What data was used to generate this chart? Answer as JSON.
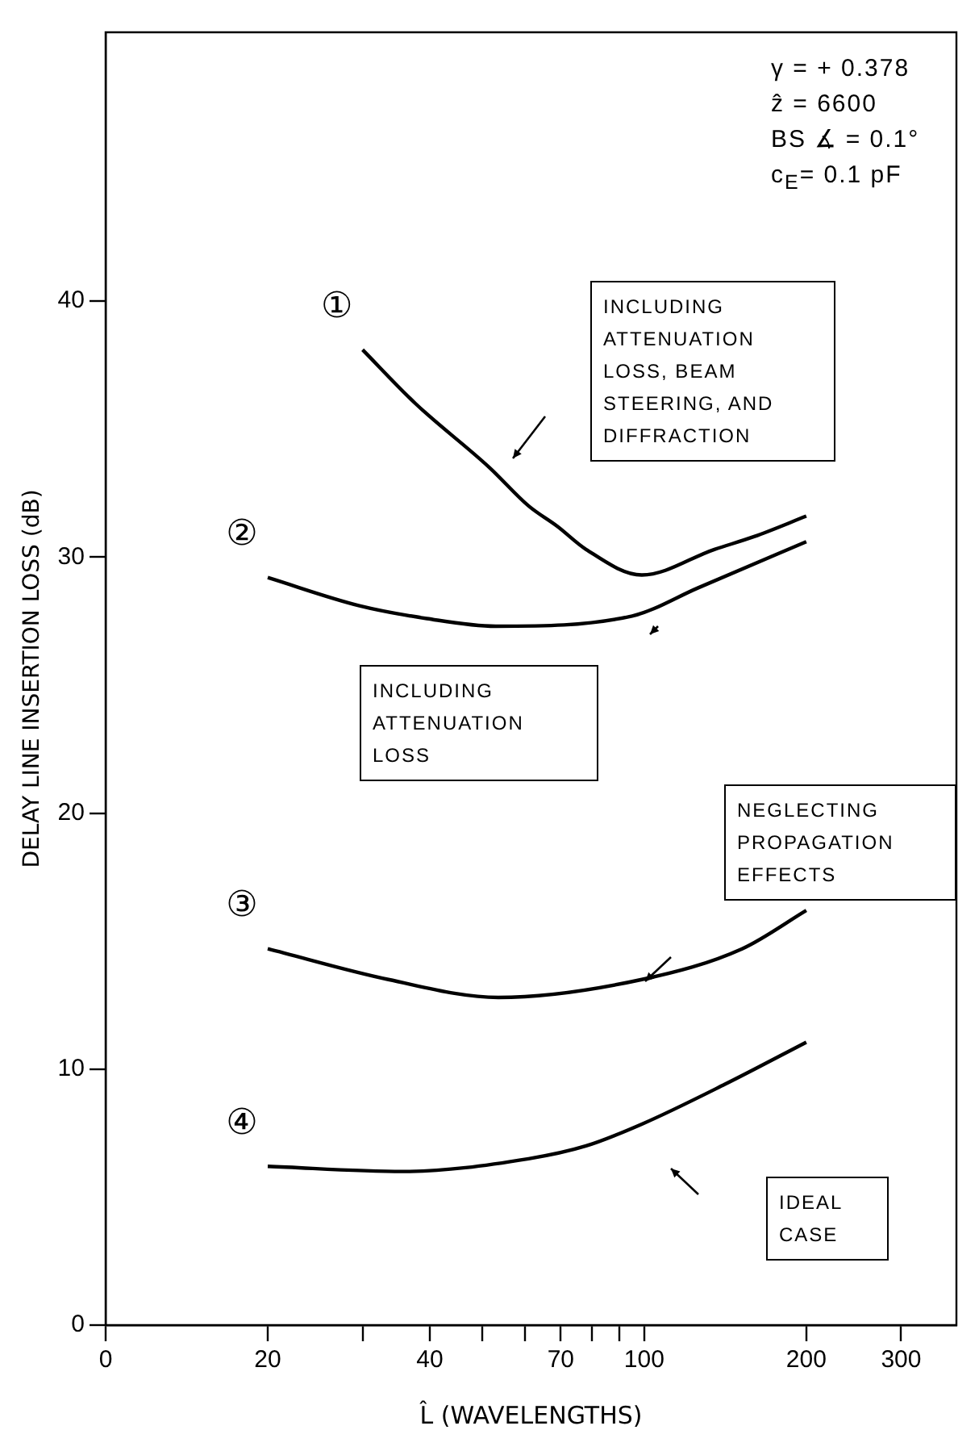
{
  "chart_data": {
    "type": "line",
    "xlabel": "L̂ (WAVELENGTHS)",
    "ylabel": "DELAY LINE INSERTION LOSS (dB)",
    "log": "x",
    "xlim": [
      0,
      380
    ],
    "ylim": [
      0,
      50.5
    ],
    "xticks": [
      0,
      20,
      {
        "value": 30,
        "label": null
      },
      40,
      {
        "value": 50,
        "label": null
      },
      {
        "value": 60,
        "label": null
      },
      70,
      {
        "value": 80,
        "label": null
      },
      {
        "value": 90,
        "label": null
      },
      100,
      200,
      300
    ],
    "yticks": [
      0,
      10,
      20,
      30,
      40
    ],
    "grid": false,
    "legend": false,
    "marker": "none",
    "line_style": "solid",
    "series": [
      {
        "name": "①",
        "color": "#000000",
        "x": [
          30,
          37.6,
          51.6,
          61,
          69,
          78,
          99,
          135,
          160,
          200
        ],
        "values": [
          38.1,
          36.0,
          33.5,
          32.0,
          31.2,
          30.3,
          29.3,
          30.3,
          30.8,
          31.6
        ]
      },
      {
        "name": "②",
        "color": "#000000",
        "x": [
          20,
          29.6,
          39.5,
          53,
          95,
          126,
          200
        ],
        "values": [
          29.2,
          28.1,
          27.6,
          27.3,
          27.7,
          28.8,
          30.6
        ]
      },
      {
        "name": "③",
        "color": "#000000",
        "x": [
          20,
          33.5,
          53.6,
          99,
          152,
          200
        ],
        "values": [
          14.7,
          13.5,
          12.8,
          13.5,
          14.7,
          16.2
        ]
      },
      {
        "name": "④",
        "color": "#000000",
        "x": [
          20,
          35.6,
          61,
          78,
          99,
          141,
          200
        ],
        "values": [
          6.2,
          6.0,
          6.5,
          7.0,
          7.85,
          9.4,
          11.05
        ]
      }
    ],
    "annotations": [
      "γ = + 0.378\nẑ = 6600\nBS ∡ = 0.1°\nc$_{E}$= 0.1 pF",
      "INCLUDING ATTENUATION LOSS, BEAM STEERING, AND DIFFRACTION",
      "INCLUDING ATTENUATION LOSS",
      "NEGLECTING PROPAGATION EFFECTS",
      "IDEAL CASE"
    ]
  }
}
